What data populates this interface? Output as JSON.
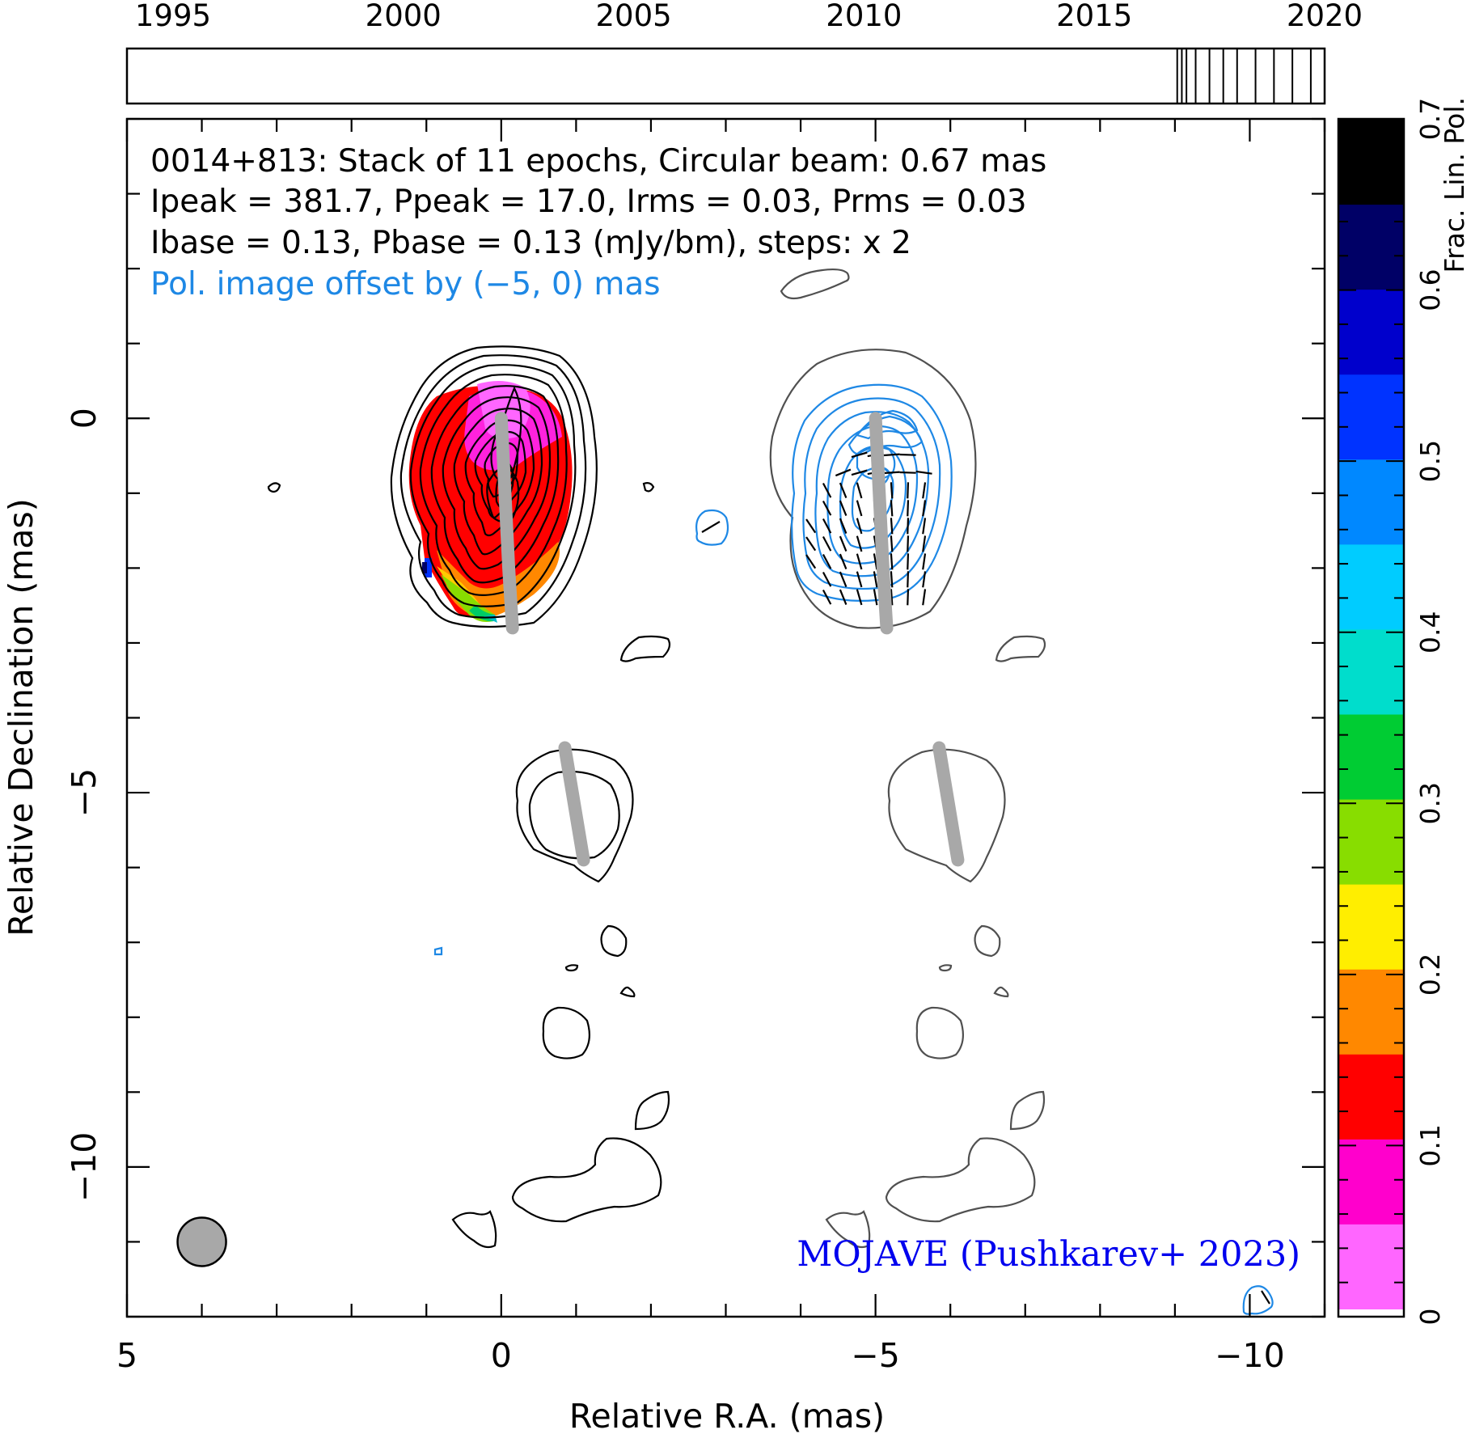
{
  "chart_data": {
    "type": "heatmap",
    "subtype": "VLBI stacked total intensity + linear polarization map",
    "source": "0014+813",
    "header_lines": [
      "0014+813: Stack of 11 epochs, Circular beam: 0.67 mas",
      "Ipeak = 381.7, Ppeak = 17.0, Irms = 0.03, Prms = 0.03",
      "Ibase = 0.13, Pbase = 0.13 (mJy/bm), steps: x 2",
      "Pol. image offset by (−5, 0) mas"
    ],
    "xlabel": "Relative R.A. (mas)",
    "ylabel": "Relative Declination (mas)",
    "xlim": [
      5,
      -11
    ],
    "ylim": [
      -12,
      4
    ],
    "x_ticks": [
      5,
      0,
      -5,
      -10
    ],
    "x_tick_labels": [
      "5",
      "0",
      "−5",
      "−10"
    ],
    "y_ticks": [
      0,
      -5,
      -10
    ],
    "y_tick_labels": [
      "0",
      "−5",
      "−10"
    ],
    "stats": {
      "epochs": 11,
      "beam_mas": 0.67,
      "Ipeak_mJy_per_beam": 381.7,
      "Ppeak_mJy_per_beam": 17.0,
      "Irms_mJy_per_beam": 0.03,
      "Prms_mJy_per_beam": 0.03,
      "Ibase_mJy_per_beam": 0.13,
      "Pbase_mJy_per_beam": 0.13,
      "contour_step_factor": 2,
      "pol_offset_mas": [
        -5,
        0
      ]
    },
    "core_position_mas": [
      0,
      -1.0
    ],
    "jet_ridgeline_mas": [
      [
        0,
        0
      ],
      [
        -0.05,
        -1
      ],
      [
        -0.1,
        -2
      ],
      [
        -0.15,
        -2.8
      ]
    ],
    "pol_jet_ridgeline_mas": [
      [
        -5,
        0
      ],
      [
        -5.05,
        -1
      ],
      [
        -5.1,
        -2
      ],
      [
        -5.15,
        -2.8
      ]
    ],
    "outer_ridgeline_mas": [
      [
        -0.85,
        -4.4
      ],
      [
        -0.95,
        -5
      ],
      [
        -1.05,
        -5.6
      ],
      [
        -1.1,
        -5.9
      ]
    ],
    "outer_pol_ridgeline_mas": [
      [
        -5.85,
        -4.4
      ],
      [
        -5.95,
        -5
      ],
      [
        -6.05,
        -5.6
      ],
      [
        -6.1,
        -5.9
      ]
    ],
    "colorbar": {
      "label": "Frac. Lin. Pol.",
      "min": 0,
      "max": 0.7,
      "ticks": [
        0,
        0.1,
        0.2,
        0.3,
        0.4,
        0.5,
        0.6,
        0.7
      ],
      "tick_labels": [
        "0",
        "0.1",
        "0.2",
        "0.3",
        "0.4",
        "0.5",
        "0.6",
        "0.7"
      ],
      "colors": [
        "#ff66ff",
        "#ff00cc",
        "#ff0000",
        "#ff8800",
        "#ffee00",
        "#88dd00",
        "#00cc33",
        "#00ddcc",
        "#00ccff",
        "#0088ff",
        "#0033ff",
        "#0000cc",
        "#000066",
        "#000000"
      ]
    },
    "timeline": {
      "range": [
        1994,
        2020
      ],
      "ticks": [
        1995,
        2000,
        2005,
        2010,
        2015,
        2020
      ],
      "tick_labels": [
        "1995",
        "2000",
        "2005",
        "2010",
        "2015",
        "2020"
      ],
      "epochs": [
        2016.8,
        2016.9,
        2017.0,
        2017.2,
        2017.5,
        2017.8,
        2018.1,
        2018.5,
        2018.9,
        2019.3,
        2019.7
      ]
    },
    "fpol_map": [
      {
        "x": -0.2,
        "y": -0.7,
        "fpol": 0.01
      },
      {
        "x": 0.2,
        "y": -0.3,
        "fpol": 0.01
      },
      {
        "x": -0.3,
        "y": -1.2,
        "fpol": 0.04
      },
      {
        "x": 0.5,
        "y": -1.2,
        "fpol": 0.05
      },
      {
        "x": -0.6,
        "y": -1.8,
        "fpol": 0.05
      },
      {
        "x": 0.8,
        "y": -2.0,
        "fpol": 0.1
      },
      {
        "x": 0.3,
        "y": -2.6,
        "fpol": 0.12
      },
      {
        "x": 0.6,
        "y": -2.8,
        "fpol": 0.22
      },
      {
        "x": 0.1,
        "y": -2.9,
        "fpol": 0.35
      },
      {
        "x": 0.9,
        "y": -2.3,
        "fpol": 0.5
      }
    ],
    "beam_position_mas": [
      4,
      -11.0
    ],
    "credit": "MOJAVE (Pushkarev+ 2023)",
    "colors": {
      "stokes_i_contours": "#000000",
      "pol_i_contours": "#505050",
      "pol_contours": "#1e88e5",
      "ridgeline": "#a8a8a8",
      "credit": "#0000ee",
      "beam": "#a8a8a8"
    }
  }
}
